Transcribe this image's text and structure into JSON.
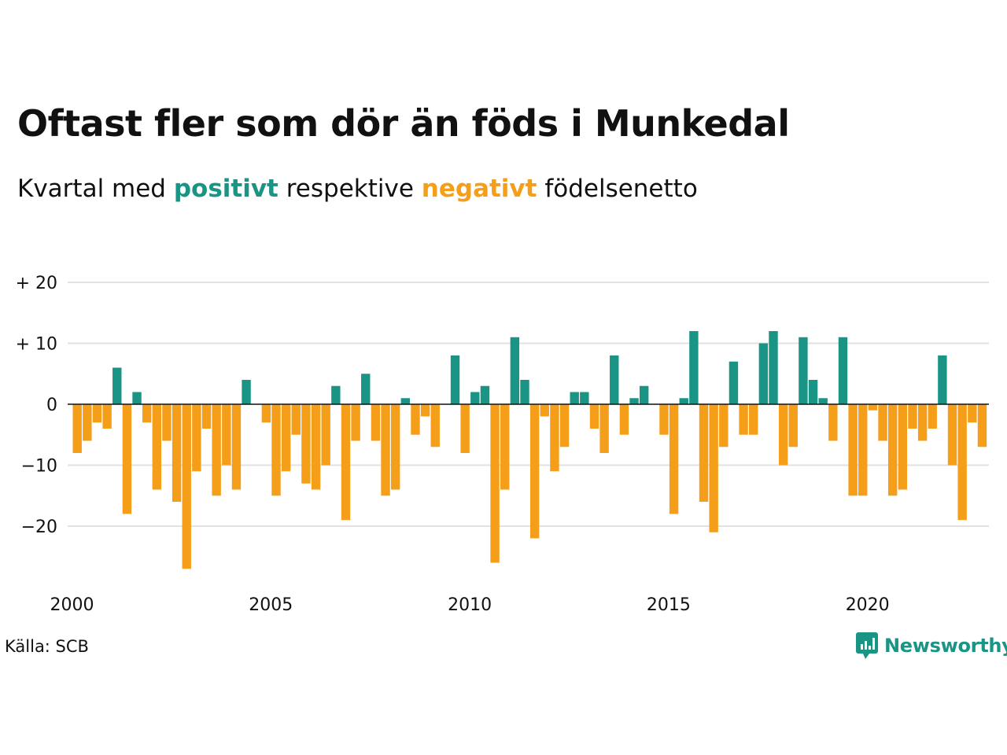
{
  "title": "Oftast fler som dör än föds i Munkedal",
  "subtitle": {
    "part1": "Kvartal med ",
    "positive": "positivt",
    "part2": " respektive ",
    "negative": "negativt",
    "part3": " födelsenetto"
  },
  "source": "Källa: SCB",
  "brand": "Newsworthy",
  "colors": {
    "positive": "#1a9485",
    "negative": "#f59e1a",
    "grid": "#e2e2e2",
    "axis": "#111111"
  },
  "chart_data": {
    "type": "bar",
    "title": "Oftast fler som dör än föds i Munkedal",
    "xlabel": "",
    "ylabel": "",
    "ylim": [
      -30,
      20
    ],
    "yticks": [
      {
        "value": 20,
        "label": "+ 20"
      },
      {
        "value": 10,
        "label": "+ 10"
      },
      {
        "value": 0,
        "label": "0"
      },
      {
        "value": -10,
        "label": "−10"
      },
      {
        "value": -20,
        "label": "−20"
      }
    ],
    "xticks": [
      "2000",
      "2005",
      "2010",
      "2015",
      "2020"
    ],
    "grid": true,
    "start_year": 2000,
    "values": [
      -8,
      -6,
      -3,
      -4,
      6,
      -18,
      2,
      -3,
      -14,
      -6,
      -16,
      -27,
      -11,
      -4,
      -15,
      -10,
      -14,
      4,
      0,
      -3,
      -15,
      -11,
      -5,
      -13,
      -14,
      -10,
      3,
      -19,
      -6,
      5,
      -6,
      -15,
      -14,
      1,
      -5,
      -2,
      -7,
      0,
      8,
      -8,
      2,
      3,
      -26,
      -14,
      11,
      4,
      -22,
      -2,
      -11,
      -7,
      2,
      2,
      -4,
      -8,
      8,
      -5,
      1,
      3,
      0,
      -5,
      -18,
      1,
      12,
      -16,
      -21,
      -7,
      7,
      -5,
      -5,
      10,
      12,
      -10,
      -7,
      11,
      4,
      1,
      -6,
      11,
      -15,
      -15,
      -1,
      -6,
      -15,
      -14,
      -4,
      -6,
      -4,
      8,
      -10,
      -19,
      -3,
      -7
    ]
  }
}
